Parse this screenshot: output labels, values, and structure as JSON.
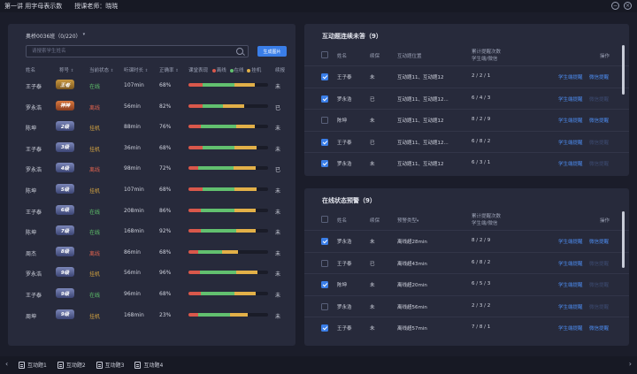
{
  "titlebar": {
    "lesson": "第一讲 用字母表示数",
    "teacher": "授课老师：晓晓",
    "minimize": "−",
    "close": "×"
  },
  "left": {
    "class_label": "奥桥0036班（0/220）",
    "class_caret": "▾",
    "search_placeholder": "请搜索学生姓名",
    "generate_button": "生成图片",
    "headers": {
      "name": "姓名",
      "rank": "称号",
      "status": "当前状态",
      "duration": "听课时长",
      "rate": "正确率",
      "performance": "课堂表现",
      "legend_offline": "离线",
      "legend_online": "在线",
      "legend_hang": "挂机",
      "account": "续报"
    },
    "rows": [
      {
        "name": "王子泰",
        "rank": "王者",
        "rank_style": "gold",
        "status": "在线",
        "status_type": "online",
        "duration": "107min",
        "rate": "68%",
        "account": "未",
        "bar": [
          0.18,
          0.4,
          0.25
        ]
      },
      {
        "name": "罗永浩",
        "rank": "神神",
        "rank_style": "orange",
        "status": "离线",
        "status_type": "offline",
        "duration": "56min",
        "rate": "82%",
        "account": "已",
        "bar": [
          0.18,
          0.25,
          0.27
        ]
      },
      {
        "name": "陈坤",
        "rank": "2级",
        "rank_style": "silver",
        "status": "挂机",
        "status_type": "hang",
        "duration": "88min",
        "rate": "76%",
        "account": "未",
        "bar": [
          0.15,
          0.45,
          0.23
        ]
      },
      {
        "name": "王子泰",
        "rank": "3级",
        "rank_style": "silver",
        "status": "挂机",
        "status_type": "hang",
        "duration": "36min",
        "rate": "68%",
        "account": "未",
        "bar": [
          0.18,
          0.4,
          0.28
        ]
      },
      {
        "name": "罗永浩",
        "rank": "4级",
        "rank_style": "silver",
        "status": "离线",
        "status_type": "offline",
        "duration": "98min",
        "rate": "72%",
        "account": "已",
        "bar": [
          0.12,
          0.45,
          0.28
        ]
      },
      {
        "name": "陈坤",
        "rank": "5级",
        "rank_style": "silver",
        "status": "挂机",
        "status_type": "hang",
        "duration": "107min",
        "rate": "68%",
        "account": "未",
        "bar": [
          0.18,
          0.4,
          0.28
        ]
      },
      {
        "name": "王子泰",
        "rank": "6级",
        "rank_style": "silver",
        "status": "在线",
        "status_type": "online",
        "duration": "208min",
        "rate": "86%",
        "account": "未",
        "bar": [
          0.16,
          0.42,
          0.27
        ]
      },
      {
        "name": "陈坤",
        "rank": "7级",
        "rank_style": "silver",
        "status": "在线",
        "status_type": "online",
        "duration": "168min",
        "rate": "92%",
        "account": "未",
        "bar": [
          0.16,
          0.44,
          0.25
        ]
      },
      {
        "name": "周杰",
        "rank": "8级",
        "rank_style": "silver",
        "status": "离线",
        "status_type": "offline",
        "duration": "86min",
        "rate": "68%",
        "account": "未",
        "bar": [
          0.12,
          0.3,
          0.2
        ]
      },
      {
        "name": "罗永浩",
        "rank": "9级",
        "rank_style": "silver",
        "status": "挂机",
        "status_type": "hang",
        "duration": "56min",
        "rate": "96%",
        "account": "未",
        "bar": [
          0.14,
          0.46,
          0.27
        ]
      },
      {
        "name": "王子泰",
        "rank": "9级",
        "rank_style": "silver",
        "status": "在线",
        "status_type": "online",
        "duration": "96min",
        "rate": "68%",
        "account": "未",
        "bar": [
          0.16,
          0.42,
          0.27
        ]
      },
      {
        "name": "周坤",
        "rank": "9级",
        "rank_style": "silver",
        "status": "挂机",
        "status_type": "hang",
        "duration": "168min",
        "rate": "23%",
        "account": "未",
        "bar": [
          0.12,
          0.4,
          0.22
        ]
      }
    ]
  },
  "unanswered": {
    "title": "互动题连续未答（9）",
    "headers": {
      "name": "姓名",
      "account": "续保",
      "position": "互动题位置",
      "count": "累计提醒次数",
      "count_sub": "学生端/微信",
      "action": "操作"
    },
    "rows": [
      {
        "checked": true,
        "name": "王子泰",
        "account": "未",
        "position": "互动题11、互动题12",
        "count": "2 / 2 / 1",
        "action1": "学生端提醒",
        "action2": "微信提醒",
        "dim": false
      },
      {
        "checked": true,
        "name": "罗永浩",
        "account": "已",
        "position": "互动题11、互动题12...",
        "count": "6 / 4 / 3",
        "action1": "学生端提醒",
        "action2": "微信提醒",
        "dim": true
      },
      {
        "checked": false,
        "name": "陈坤",
        "account": "未",
        "position": "互动题11、互动题12",
        "count": "8 / 2 / 9",
        "action1": "学生端提醒",
        "action2": "微信提醒",
        "dim": false
      },
      {
        "checked": true,
        "name": "王子泰",
        "account": "已",
        "position": "互动题11、互动题12...",
        "count": "6 / 8 / 2",
        "action1": "学生端提醒",
        "action2": "微信提醒",
        "dim": true
      },
      {
        "checked": true,
        "name": "罗永浩",
        "account": "未",
        "position": "互动题11、互动题12",
        "count": "6 / 3 / 1",
        "action1": "学生端提醒",
        "action2": "微信提醒",
        "dim": true
      }
    ]
  },
  "online": {
    "title": "在线状态预警（9）",
    "headers": {
      "name": "姓名",
      "account": "续保",
      "type": "预警类型",
      "type_caret": "▾",
      "count": "累计提醒次数",
      "count_sub": "学生端/微信",
      "action": "操作"
    },
    "rows": [
      {
        "checked": true,
        "name": "罗永浩",
        "account": "未",
        "type": "离线超28min",
        "count": "8 / 2 / 9",
        "action1": "学生端提醒",
        "action2": "微信提醒",
        "dim": false
      },
      {
        "checked": false,
        "name": "王子泰",
        "account": "已",
        "type": "离线超43min",
        "count": "6 / 8 / 2",
        "action1": "学生端提醒",
        "action2": "微信提醒",
        "dim": true
      },
      {
        "checked": true,
        "name": "陈坤",
        "account": "未",
        "type": "离线超20min",
        "count": "6 / 5 / 3",
        "action1": "学生端提醒",
        "action2": "微信提醒",
        "dim": true
      },
      {
        "checked": false,
        "name": "罗永浩",
        "account": "未",
        "type": "离线超56min",
        "count": "2 / 3 / 2",
        "action1": "学生端提醒",
        "action2": "微信提醒",
        "dim": true
      },
      {
        "checked": true,
        "name": "王子泰",
        "account": "未",
        "type": "离线超57min",
        "count": "7 / 8 / 1",
        "action1": "学生端提醒",
        "action2": "微信提醒",
        "dim": false
      }
    ]
  },
  "bottom": {
    "prev": "‹",
    "next": "›",
    "tabs": [
      "互动题1",
      "互动题2",
      "互动题3",
      "互动题4"
    ]
  }
}
